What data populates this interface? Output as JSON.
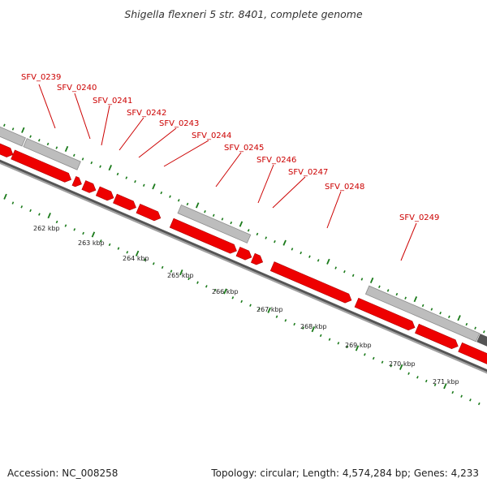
{
  "title": "Shigella flexneri 5 str. 8401, complete genome",
  "footer": {
    "accession": "Accession: NC_008258",
    "summary": "Topology: circular; Length: 4,574,284 bp; Genes: 4,233"
  },
  "colors": {
    "gene_forward": "#ee0000",
    "gene_band_gray": "#b4b4b4",
    "gene_band_dark": "#555555",
    "backbone": "#707070",
    "tick_green": "#1a7a1a",
    "label_red": "#cc0000"
  },
  "gene_labels": [
    "SFV_0239",
    "SFV_0240",
    "SFV_0241",
    "SFV_0242",
    "SFV_0243",
    "SFV_0244",
    "SFV_0245",
    "SFV_0246",
    "SFV_0247",
    "SFV_0248",
    "SFV_0249"
  ],
  "kbp_labels": [
    "262 kbp",
    "263 kbp",
    "264 kbp",
    "265 kbp",
    "266 kbp",
    "267 kbp",
    "268 kbp",
    "269 kbp",
    "270 kbp",
    "271 kbp"
  ]
}
